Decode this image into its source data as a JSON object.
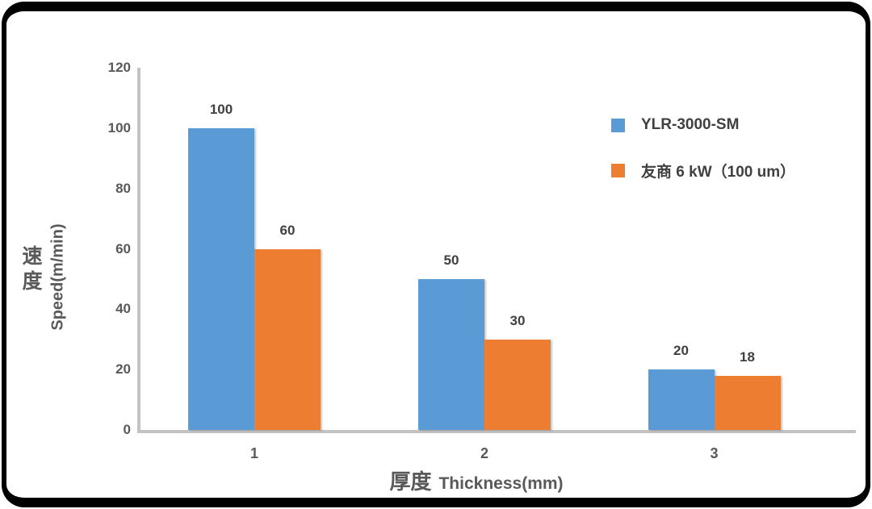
{
  "frame": {
    "border_color": "#000000",
    "card_background": "#ffffff"
  },
  "chart_data": {
    "type": "bar",
    "title": "",
    "categories": [
      "1",
      "2",
      "3"
    ],
    "series": [
      {
        "name": "YLR-3000-SM",
        "color": "#5B9BD5",
        "values": [
          100,
          50,
          20
        ]
      },
      {
        "name": "友商 6 kW（100 um）",
        "color": "#ED7D31",
        "values": [
          60,
          30,
          18
        ]
      }
    ],
    "data_labels": [
      [
        100,
        50,
        20
      ],
      [
        60,
        30,
        18
      ]
    ],
    "xlabel": "厚度 Thickness(mm)",
    "xlabel_cn": "厚度",
    "xlabel_en": "Thickness(mm)",
    "ylabel": "速度 Speed(m/min)",
    "ylabel_cn": "速度",
    "ylabel_en": "Speed(m/min)",
    "ylim": [
      0,
      120
    ],
    "yticks": [
      0,
      20,
      40,
      60,
      80,
      100,
      120
    ],
    "grid": false,
    "legend_position": "upper-right",
    "show_data_labels": true,
    "colors": {
      "axis_line": "#C3C3C3",
      "tick_text": "#595959",
      "axis_title_text": "#595959",
      "data_label_text": "#404040",
      "legend_text": "#404040"
    }
  }
}
